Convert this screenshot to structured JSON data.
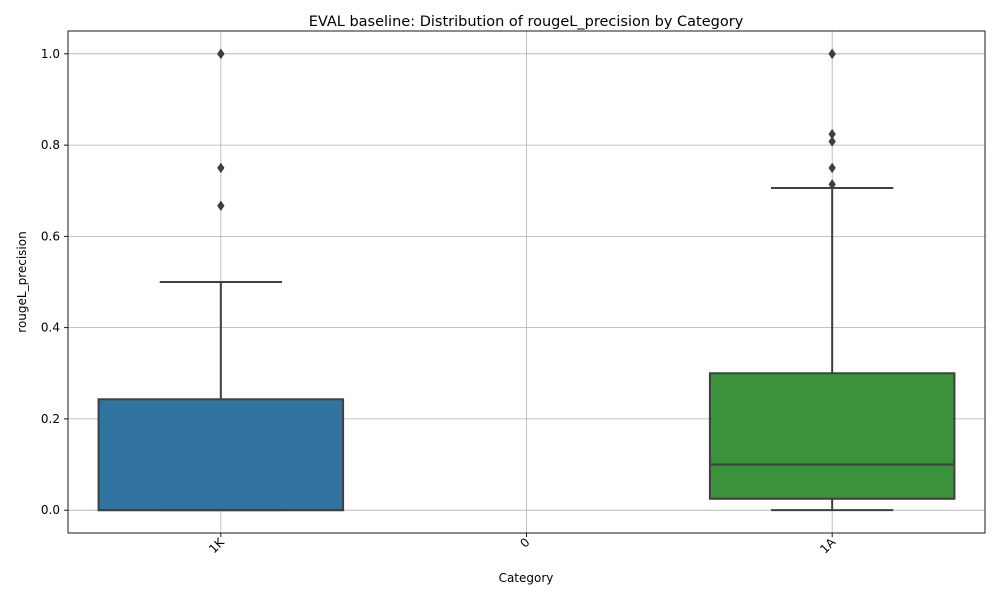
{
  "chart_data": {
    "type": "box",
    "title": "EVAL baseline: Distribution of rougeL_precision by Category",
    "xlabel": "Category",
    "ylabel": "rougeL_precision",
    "categories": [
      "1K",
      "0",
      "1A"
    ],
    "ylim": [
      -0.05,
      1.05
    ],
    "yticks": [
      0.0,
      0.2,
      0.4,
      0.6,
      0.8,
      1.0
    ],
    "ytick_labels": [
      "0.0",
      "0.2",
      "0.4",
      "0.6",
      "0.8",
      "1.0"
    ],
    "grid": true,
    "boxes": [
      {
        "category": "1K",
        "color": "#3274a1",
        "whisker_low": 0.0,
        "q1": 0.0,
        "median": 0.0,
        "q3": 0.243,
        "whisker_high": 0.5,
        "outliers": [
          1.0,
          1.0,
          0.75,
          0.667
        ]
      },
      {
        "category": "0",
        "color": "#e1812c",
        "empty": true
      },
      {
        "category": "1A",
        "color": "#3a923a",
        "whisker_low": 0.0,
        "q1": 0.025,
        "median": 0.1,
        "q3": 0.3,
        "whisker_high": 0.706,
        "outliers": [
          1.0,
          1.0,
          0.824,
          0.808,
          0.75,
          0.714
        ]
      }
    ]
  }
}
